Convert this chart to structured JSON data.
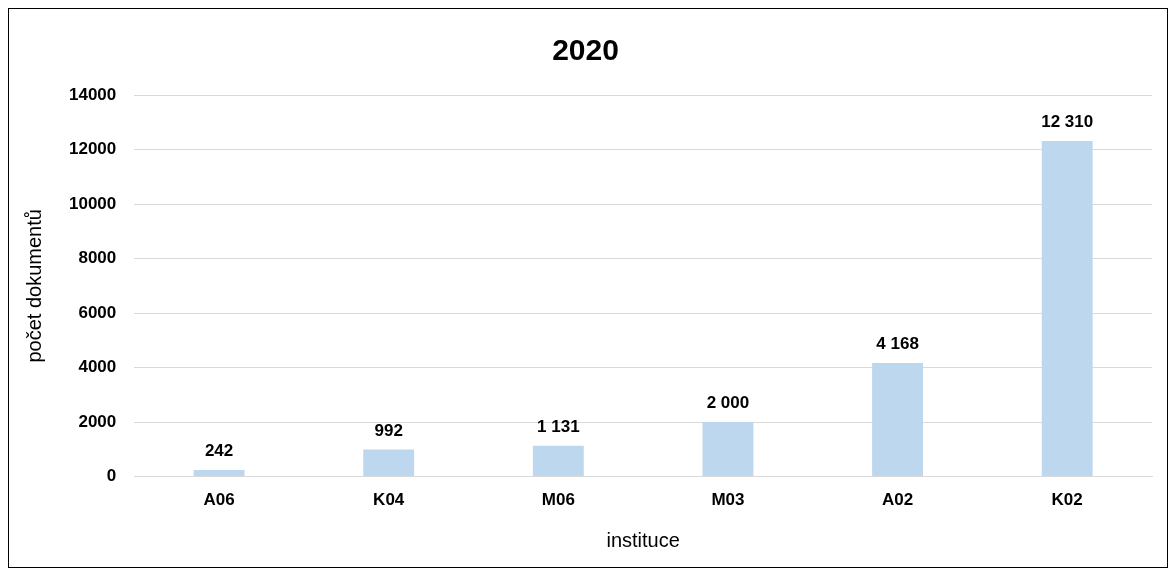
{
  "chart_data": {
    "type": "bar",
    "title": "2020",
    "xlabel": "instituce",
    "ylabel": "počet dokumentů",
    "categories": [
      "A06",
      "K04",
      "M06",
      "M03",
      "A02",
      "K02"
    ],
    "values": [
      242,
      992,
      1131,
      2000,
      4168,
      12310
    ],
    "value_labels": [
      "242",
      "992",
      "1 131",
      "2 000",
      "4 168",
      "12 310"
    ],
    "color": "#bdd7ee",
    "ylim": [
      0,
      14000
    ],
    "yticks": [
      0,
      2000,
      4000,
      6000,
      8000,
      10000,
      12000,
      14000
    ],
    "grid": "y",
    "legend": false
  }
}
